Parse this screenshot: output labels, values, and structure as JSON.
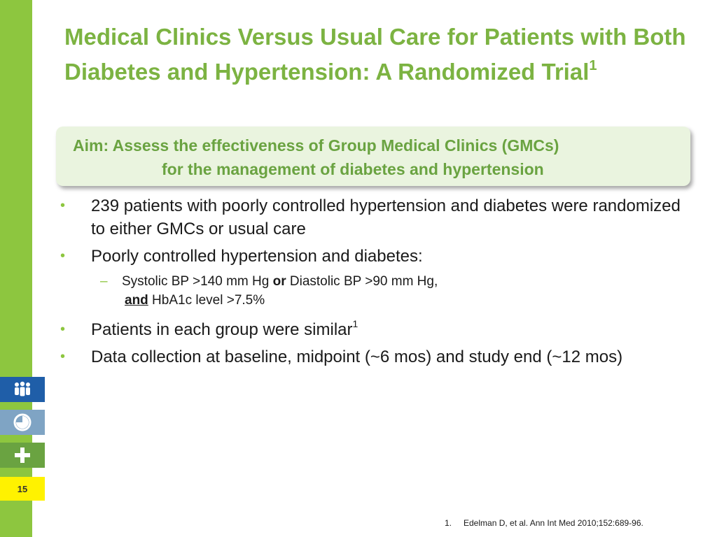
{
  "title": {
    "main": "Medical Clinics Versus Usual Care for Patients with Both Diabetes and Hypertension: A Randomized Trial",
    "superscript": "1"
  },
  "aim": {
    "line1": "Aim: Assess the effectiveness of Group Medical Clinics (GMCs)",
    "line2": "for the management of diabetes and hypertension"
  },
  "bullets": {
    "b1": "239 patients with poorly controlled hypertension and diabetes were randomized to either GMCs or usual care",
    "b2": "Poorly controlled hypertension and diabetes:",
    "sub": {
      "part1": "Systolic BP >140 mm Hg ",
      "or": "or",
      "part2": " Diastolic BP >90 mm Hg,",
      "and": "and",
      "part3": " HbA1c level >7.5%"
    },
    "b3": "Patients in each group were similar",
    "b3_sup": "1",
    "b4": "Data collection at baseline, midpoint (~6 mos) and study end (~12 mos)"
  },
  "sidebar": {
    "icons": [
      "people-icon",
      "pie-chart-icon",
      "plus-icon"
    ],
    "page_number": "15",
    "colors": {
      "bar": "#8dc63f",
      "people": "#1f5ea8",
      "chart": "#7fa4c4",
      "plus": "#6aa341",
      "page": "#fff200"
    }
  },
  "footnote": {
    "number": "1.",
    "text": "Edelman D, et al. Ann Int Med 2010;152:689-96."
  },
  "colors": {
    "title": "#7cb342",
    "aim_bg": "#eaf4df",
    "aim_text": "#6aa341"
  }
}
